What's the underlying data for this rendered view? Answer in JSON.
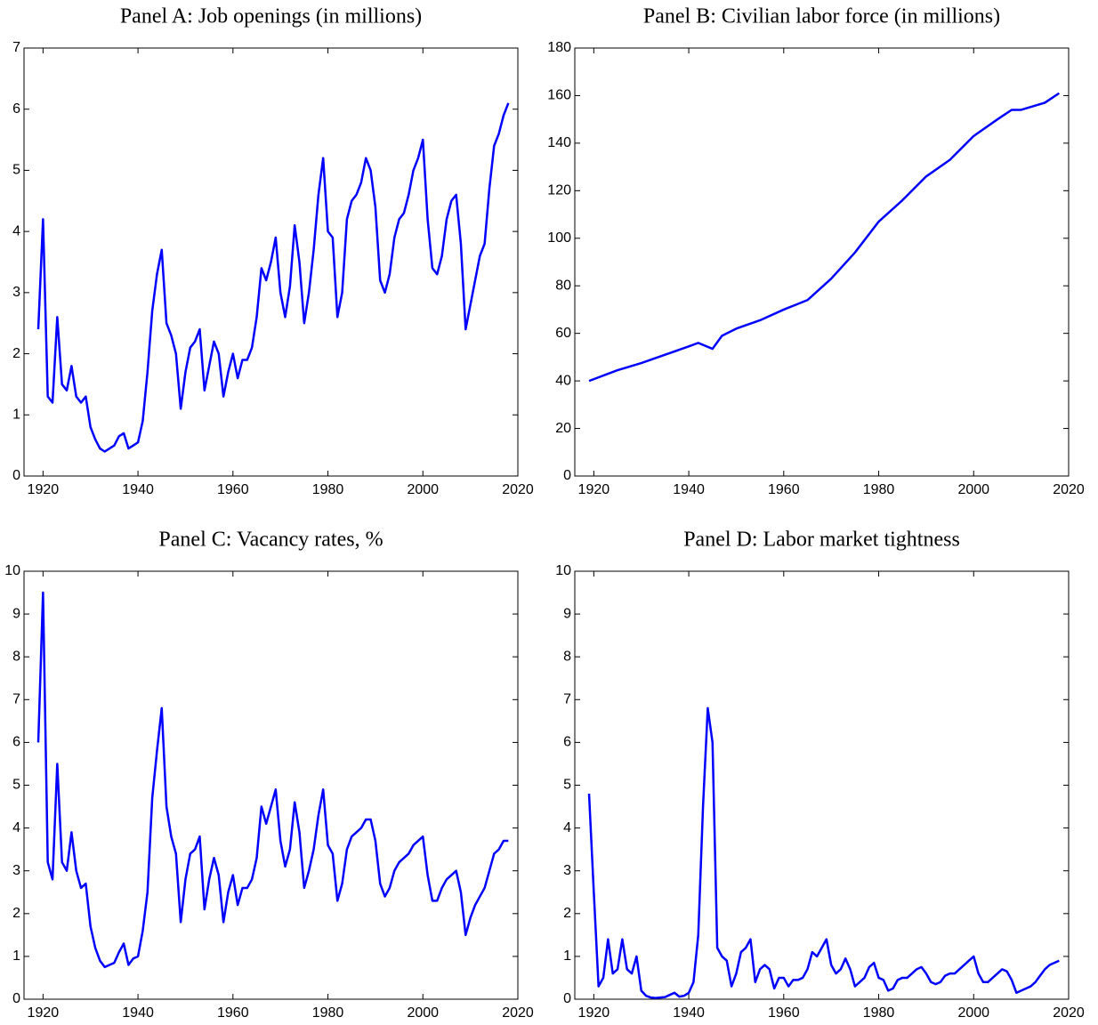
{
  "chart_data": [
    {
      "type": "line",
      "title": "Panel A: Job openings (in millions)",
      "x": [
        1919,
        1920,
        1921,
        1922,
        1923,
        1924,
        1925,
        1926,
        1927,
        1928,
        1929,
        1930,
        1931,
        1932,
        1933,
        1934,
        1935,
        1936,
        1937,
        1938,
        1939,
        1940,
        1941,
        1942,
        1943,
        1944,
        1945,
        1946,
        1947,
        1948,
        1949,
        1950,
        1951,
        1952,
        1953,
        1954,
        1955,
        1956,
        1957,
        1958,
        1959,
        1960,
        1961,
        1962,
        1963,
        1964,
        1965,
        1966,
        1967,
        1968,
        1969,
        1970,
        1971,
        1972,
        1973,
        1974,
        1975,
        1976,
        1977,
        1978,
        1979,
        1980,
        1981,
        1982,
        1983,
        1984,
        1985,
        1986,
        1987,
        1988,
        1989,
        1990,
        1991,
        1992,
        1993,
        1994,
        1995,
        1996,
        1997,
        1998,
        1999,
        2000,
        2001,
        2002,
        2003,
        2004,
        2005,
        2006,
        2007,
        2008,
        2009,
        2010,
        2011,
        2012,
        2013,
        2014,
        2015,
        2016,
        2017,
        2018
      ],
      "series": [
        {
          "color": "#0000ff",
          "values": [
            2.4,
            4.2,
            1.3,
            1.2,
            2.6,
            1.5,
            1.4,
            1.8,
            1.3,
            1.2,
            1.3,
            0.8,
            0.6,
            0.45,
            0.4,
            0.45,
            0.5,
            0.65,
            0.7,
            0.45,
            0.5,
            0.55,
            0.9,
            1.7,
            2.7,
            3.3,
            3.7,
            2.5,
            2.3,
            2.0,
            1.1,
            1.7,
            2.1,
            2.2,
            2.4,
            1.4,
            1.8,
            2.2,
            2.0,
            1.3,
            1.7,
            2.0,
            1.6,
            1.9,
            1.9,
            2.1,
            2.6,
            3.4,
            3.2,
            3.5,
            3.9,
            3.0,
            2.6,
            3.1,
            4.1,
            3.5,
            2.5,
            3.0,
            3.7,
            4.6,
            5.2,
            4.0,
            3.9,
            2.6,
            3.0,
            4.2,
            4.5,
            4.6,
            4.8,
            5.2,
            5.0,
            4.4,
            3.2,
            3.0,
            3.3,
            3.9,
            4.2,
            4.3,
            4.6,
            5.0,
            5.2,
            5.5,
            4.2,
            3.4,
            3.3,
            3.6,
            4.2,
            4.5,
            4.6,
            3.8,
            2.4,
            2.8,
            3.2,
            3.6,
            3.8,
            4.7,
            5.4,
            5.6,
            5.9,
            6.1
          ]
        }
      ],
      "xlim": [
        1916,
        2020
      ],
      "xticks": [
        1920,
        1940,
        1960,
        1980,
        2000,
        2020
      ],
      "ylim": [
        0,
        7
      ],
      "yticks": [
        0,
        1,
        2,
        3,
        4,
        5,
        6,
        7
      ]
    },
    {
      "type": "line",
      "title": "Panel B: Civilian labor force (in millions)",
      "x": [
        1919,
        1925,
        1930,
        1935,
        1940,
        1942,
        1945,
        1947,
        1950,
        1955,
        1960,
        1965,
        1970,
        1975,
        1980,
        1985,
        1990,
        1995,
        2000,
        2005,
        2008,
        2010,
        2015,
        2018
      ],
      "series": [
        {
          "color": "#0000ff",
          "values": [
            40,
            44.5,
            47.5,
            51,
            54.5,
            56,
            53.5,
            59,
            62,
            65.5,
            70,
            74,
            83,
            94,
            107,
            116,
            126,
            133,
            143,
            150,
            154,
            154,
            157,
            161
          ]
        }
      ],
      "xlim": [
        1916,
        2020
      ],
      "xticks": [
        1920,
        1940,
        1960,
        1980,
        2000,
        2020
      ],
      "ylim": [
        0,
        180
      ],
      "yticks": [
        0,
        20,
        40,
        60,
        80,
        100,
        120,
        140,
        160,
        180
      ]
    },
    {
      "type": "line",
      "title": "Panel C: Vacancy rates, %",
      "x": [
        1919,
        1920,
        1921,
        1922,
        1923,
        1924,
        1925,
        1926,
        1927,
        1928,
        1929,
        1930,
        1931,
        1932,
        1933,
        1934,
        1935,
        1936,
        1937,
        1938,
        1939,
        1940,
        1941,
        1942,
        1943,
        1944,
        1945,
        1946,
        1947,
        1948,
        1949,
        1950,
        1951,
        1952,
        1953,
        1954,
        1955,
        1956,
        1957,
        1958,
        1959,
        1960,
        1961,
        1962,
        1963,
        1964,
        1965,
        1966,
        1967,
        1968,
        1969,
        1970,
        1971,
        1972,
        1973,
        1974,
        1975,
        1976,
        1977,
        1978,
        1979,
        1980,
        1981,
        1982,
        1983,
        1984,
        1985,
        1986,
        1987,
        1988,
        1989,
        1990,
        1991,
        1992,
        1993,
        1994,
        1995,
        1996,
        1997,
        1998,
        1999,
        2000,
        2001,
        2002,
        2003,
        2004,
        2005,
        2006,
        2007,
        2008,
        2009,
        2010,
        2011,
        2012,
        2013,
        2014,
        2015,
        2016,
        2017,
        2018
      ],
      "series": [
        {
          "color": "#0000ff",
          "values": [
            6.0,
            9.5,
            3.2,
            2.8,
            5.5,
            3.2,
            3.0,
            3.9,
            3.0,
            2.6,
            2.7,
            1.7,
            1.2,
            0.9,
            0.75,
            0.8,
            0.85,
            1.1,
            1.3,
            0.8,
            0.95,
            1.0,
            1.6,
            2.5,
            4.7,
            5.8,
            6.8,
            4.5,
            3.8,
            3.4,
            1.8,
            2.8,
            3.4,
            3.5,
            3.8,
            2.1,
            2.8,
            3.3,
            2.9,
            1.8,
            2.5,
            2.9,
            2.2,
            2.6,
            2.6,
            2.8,
            3.3,
            4.5,
            4.1,
            4.5,
            4.9,
            3.7,
            3.1,
            3.5,
            4.6,
            3.9,
            2.6,
            3.0,
            3.5,
            4.3,
            4.9,
            3.6,
            3.4,
            2.3,
            2.7,
            3.5,
            3.8,
            3.9,
            4.0,
            4.2,
            4.2,
            3.7,
            2.7,
            2.4,
            2.6,
            3.0,
            3.2,
            3.3,
            3.4,
            3.6,
            3.7,
            3.8,
            2.9,
            2.3,
            2.3,
            2.6,
            2.8,
            2.9,
            3.0,
            2.5,
            1.5,
            1.9,
            2.2,
            2.4,
            2.6,
            3.0,
            3.4,
            3.5,
            3.7,
            3.7
          ]
        }
      ],
      "xlim": [
        1916,
        2020
      ],
      "xticks": [
        1920,
        1940,
        1960,
        1980,
        2000,
        2020
      ],
      "ylim": [
        0,
        10
      ],
      "yticks": [
        0,
        1,
        2,
        3,
        4,
        5,
        6,
        7,
        8,
        9,
        10
      ]
    },
    {
      "type": "line",
      "title": "Panel D: Labor market tightness",
      "x": [
        1919,
        1920,
        1921,
        1922,
        1923,
        1924,
        1925,
        1926,
        1927,
        1928,
        1929,
        1930,
        1931,
        1932,
        1933,
        1934,
        1935,
        1936,
        1937,
        1938,
        1939,
        1940,
        1941,
        1942,
        1943,
        1944,
        1945,
        1946,
        1947,
        1948,
        1949,
        1950,
        1951,
        1952,
        1953,
        1954,
        1955,
        1956,
        1957,
        1958,
        1959,
        1960,
        1961,
        1962,
        1963,
        1964,
        1965,
        1966,
        1967,
        1968,
        1969,
        1970,
        1971,
        1972,
        1973,
        1974,
        1975,
        1976,
        1977,
        1978,
        1979,
        1980,
        1981,
        1982,
        1983,
        1984,
        1985,
        1986,
        1987,
        1988,
        1989,
        1990,
        1991,
        1992,
        1993,
        1994,
        1995,
        1996,
        1997,
        1998,
        1999,
        2000,
        2001,
        2002,
        2003,
        2004,
        2005,
        2006,
        2007,
        2008,
        2009,
        2010,
        2011,
        2012,
        2013,
        2014,
        2015,
        2016,
        2017,
        2018
      ],
      "series": [
        {
          "color": "#0000ff",
          "values": [
            4.8,
            2.5,
            0.3,
            0.5,
            1.4,
            0.6,
            0.7,
            1.4,
            0.7,
            0.6,
            1.0,
            0.2,
            0.08,
            0.04,
            0.03,
            0.04,
            0.05,
            0.1,
            0.15,
            0.06,
            0.08,
            0.15,
            0.4,
            1.5,
            4.5,
            6.8,
            6.0,
            1.2,
            1.0,
            0.9,
            0.3,
            0.6,
            1.1,
            1.2,
            1.4,
            0.4,
            0.7,
            0.8,
            0.7,
            0.25,
            0.5,
            0.5,
            0.3,
            0.45,
            0.45,
            0.5,
            0.7,
            1.1,
            1.0,
            1.2,
            1.4,
            0.8,
            0.6,
            0.7,
            0.95,
            0.7,
            0.3,
            0.4,
            0.5,
            0.75,
            0.85,
            0.5,
            0.45,
            0.2,
            0.25,
            0.45,
            0.5,
            0.5,
            0.6,
            0.7,
            0.75,
            0.6,
            0.4,
            0.35,
            0.4,
            0.55,
            0.6,
            0.6,
            0.7,
            0.8,
            0.9,
            1.0,
            0.6,
            0.4,
            0.4,
            0.5,
            0.6,
            0.7,
            0.65,
            0.45,
            0.15,
            0.2,
            0.25,
            0.3,
            0.4,
            0.55,
            0.7,
            0.8,
            0.85,
            0.9
          ]
        }
      ],
      "xlim": [
        1916,
        2020
      ],
      "xticks": [
        1920,
        1940,
        1960,
        1980,
        2000,
        2020
      ],
      "ylim": [
        0,
        10
      ],
      "yticks": [
        0,
        1,
        2,
        3,
        4,
        5,
        6,
        7,
        8,
        9,
        10
      ]
    }
  ]
}
